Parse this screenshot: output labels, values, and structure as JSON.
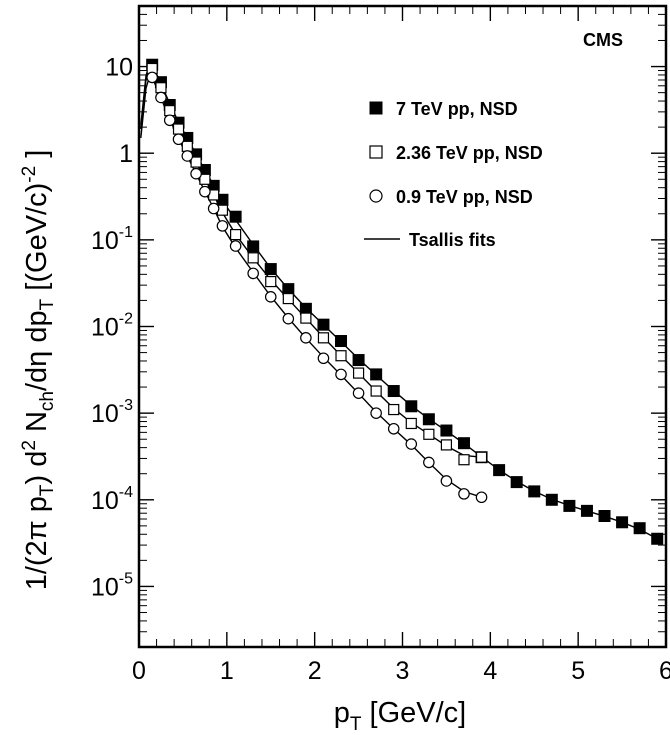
{
  "chart_data": {
    "type": "scatter",
    "annotation": "CMS",
    "xlabel": {
      "base": "p",
      "sub": "T",
      "rest": " [GeV/c]"
    },
    "ylabel": "1/(2π pT) d2 Nch/dη dpT [(GeV/c)-2 ]",
    "x_range": [
      0,
      6
    ],
    "y_range": [
      2e-06,
      50
    ],
    "y_scale": "log",
    "x_ticks": [
      "0",
      "1",
      "2",
      "3",
      "4",
      "5",
      "6"
    ],
    "y_tick_labels": [
      {
        "value": 10,
        "base": "10",
        "exp": ""
      },
      {
        "value": 1,
        "base": "1",
        "exp": ""
      },
      {
        "value": 0.1,
        "base": "10",
        "exp": "-1"
      },
      {
        "value": 0.01,
        "base": "10",
        "exp": "-2"
      },
      {
        "value": 0.001,
        "base": "10",
        "exp": "-3"
      },
      {
        "value": 0.0001,
        "base": "10",
        "exp": "-4"
      },
      {
        "value": 1e-05,
        "base": "10",
        "exp": "-5"
      }
    ],
    "legend_placement": "top-right",
    "series": [
      {
        "name": "7 TeV pp, NSD",
        "marker": "filled-square",
        "x": [
          0.15,
          0.25,
          0.35,
          0.45,
          0.55,
          0.65,
          0.75,
          0.85,
          0.95,
          1.1,
          1.3,
          1.5,
          1.7,
          1.9,
          2.1,
          2.3,
          2.5,
          2.7,
          2.9,
          3.1,
          3.3,
          3.5,
          3.7,
          3.9,
          4.1,
          4.3,
          4.5,
          4.7,
          4.9,
          5.1,
          5.3,
          5.5,
          5.7,
          5.9
        ],
        "y": [
          10.5,
          6.6,
          3.6,
          2.25,
          1.5,
          0.97,
          0.64,
          0.42,
          0.29,
          0.185,
          0.084,
          0.046,
          0.027,
          0.016,
          0.0105,
          0.0068,
          0.0041,
          0.0028,
          0.0018,
          0.0012,
          0.00085,
          0.00063,
          0.00045,
          0.00031,
          0.00022,
          0.00016,
          0.000125,
          0.0001,
          8.5e-05,
          7.45e-05,
          6.5e-05,
          5.5e-05,
          4.7e-05,
          3.55e-05
        ]
      },
      {
        "name": "2.36 TeV pp, NSD",
        "marker": "open-square",
        "x": [
          0.15,
          0.25,
          0.35,
          0.45,
          0.55,
          0.65,
          0.75,
          0.85,
          0.95,
          1.1,
          1.3,
          1.5,
          1.7,
          1.9,
          2.1,
          2.3,
          2.5,
          2.7,
          2.9,
          3.1,
          3.3,
          3.5,
          3.7,
          3.9
        ],
        "y": [
          9.5,
          5.7,
          3.1,
          1.9,
          1.2,
          0.79,
          0.5,
          0.33,
          0.22,
          0.115,
          0.062,
          0.033,
          0.021,
          0.0125,
          0.0074,
          0.0046,
          0.0029,
          0.0018,
          0.0011,
          0.00076,
          0.00057,
          0.00043,
          0.00029,
          0.00031
        ]
      },
      {
        "name": "0.9 TeV pp, NSD",
        "marker": "open-circle",
        "x": [
          0.15,
          0.25,
          0.35,
          0.45,
          0.55,
          0.65,
          0.75,
          0.85,
          0.95,
          1.1,
          1.3,
          1.5,
          1.7,
          1.9,
          2.1,
          2.3,
          2.5,
          2.7,
          2.9,
          3.1,
          3.3,
          3.5,
          3.7,
          3.9
        ],
        "y": [
          7.5,
          4.4,
          2.4,
          1.45,
          0.93,
          0.58,
          0.36,
          0.23,
          0.145,
          0.085,
          0.041,
          0.022,
          0.0123,
          0.0074,
          0.0043,
          0.0028,
          0.0017,
          0.001,
          0.00066,
          0.00044,
          0.00027,
          0.000165,
          0.000117,
          0.000107
        ]
      },
      {
        "name": "Tsallis fits",
        "marker": "line"
      }
    ]
  }
}
